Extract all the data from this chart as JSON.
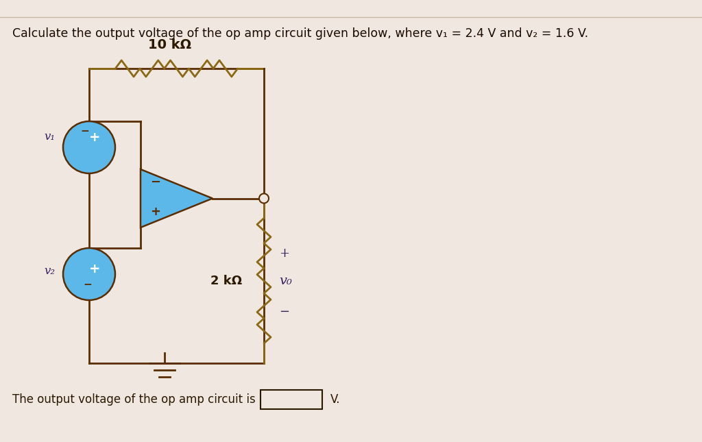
{
  "title": "Calculate the output voltage of the op amp circuit given below, where v₁ = 2.4 V and v₂ = 1.6 V.",
  "bottom_text": "The output voltage of the op amp circuit is",
  "bottom_unit": "V.",
  "resistor_top_label": "10 kΩ",
  "resistor_bottom_label": "2 kΩ",
  "v1_label": "v₁",
  "v2_label": "v₂",
  "vo_label": "v₀",
  "bg_color": "#f0e8e0",
  "line_color": "#5a2d00",
  "op_amp_color": "#5bb8e8",
  "source_color": "#5bb8e8",
  "resistor_color": "#8B6914",
  "text_color": "#2a1800",
  "title_color": "#1a0a00",
  "separator_color": "#c8b8a0",
  "ground_color": "#5a2d00",
  "vo_color": "#3a2060",
  "label_color": "#3a2060"
}
